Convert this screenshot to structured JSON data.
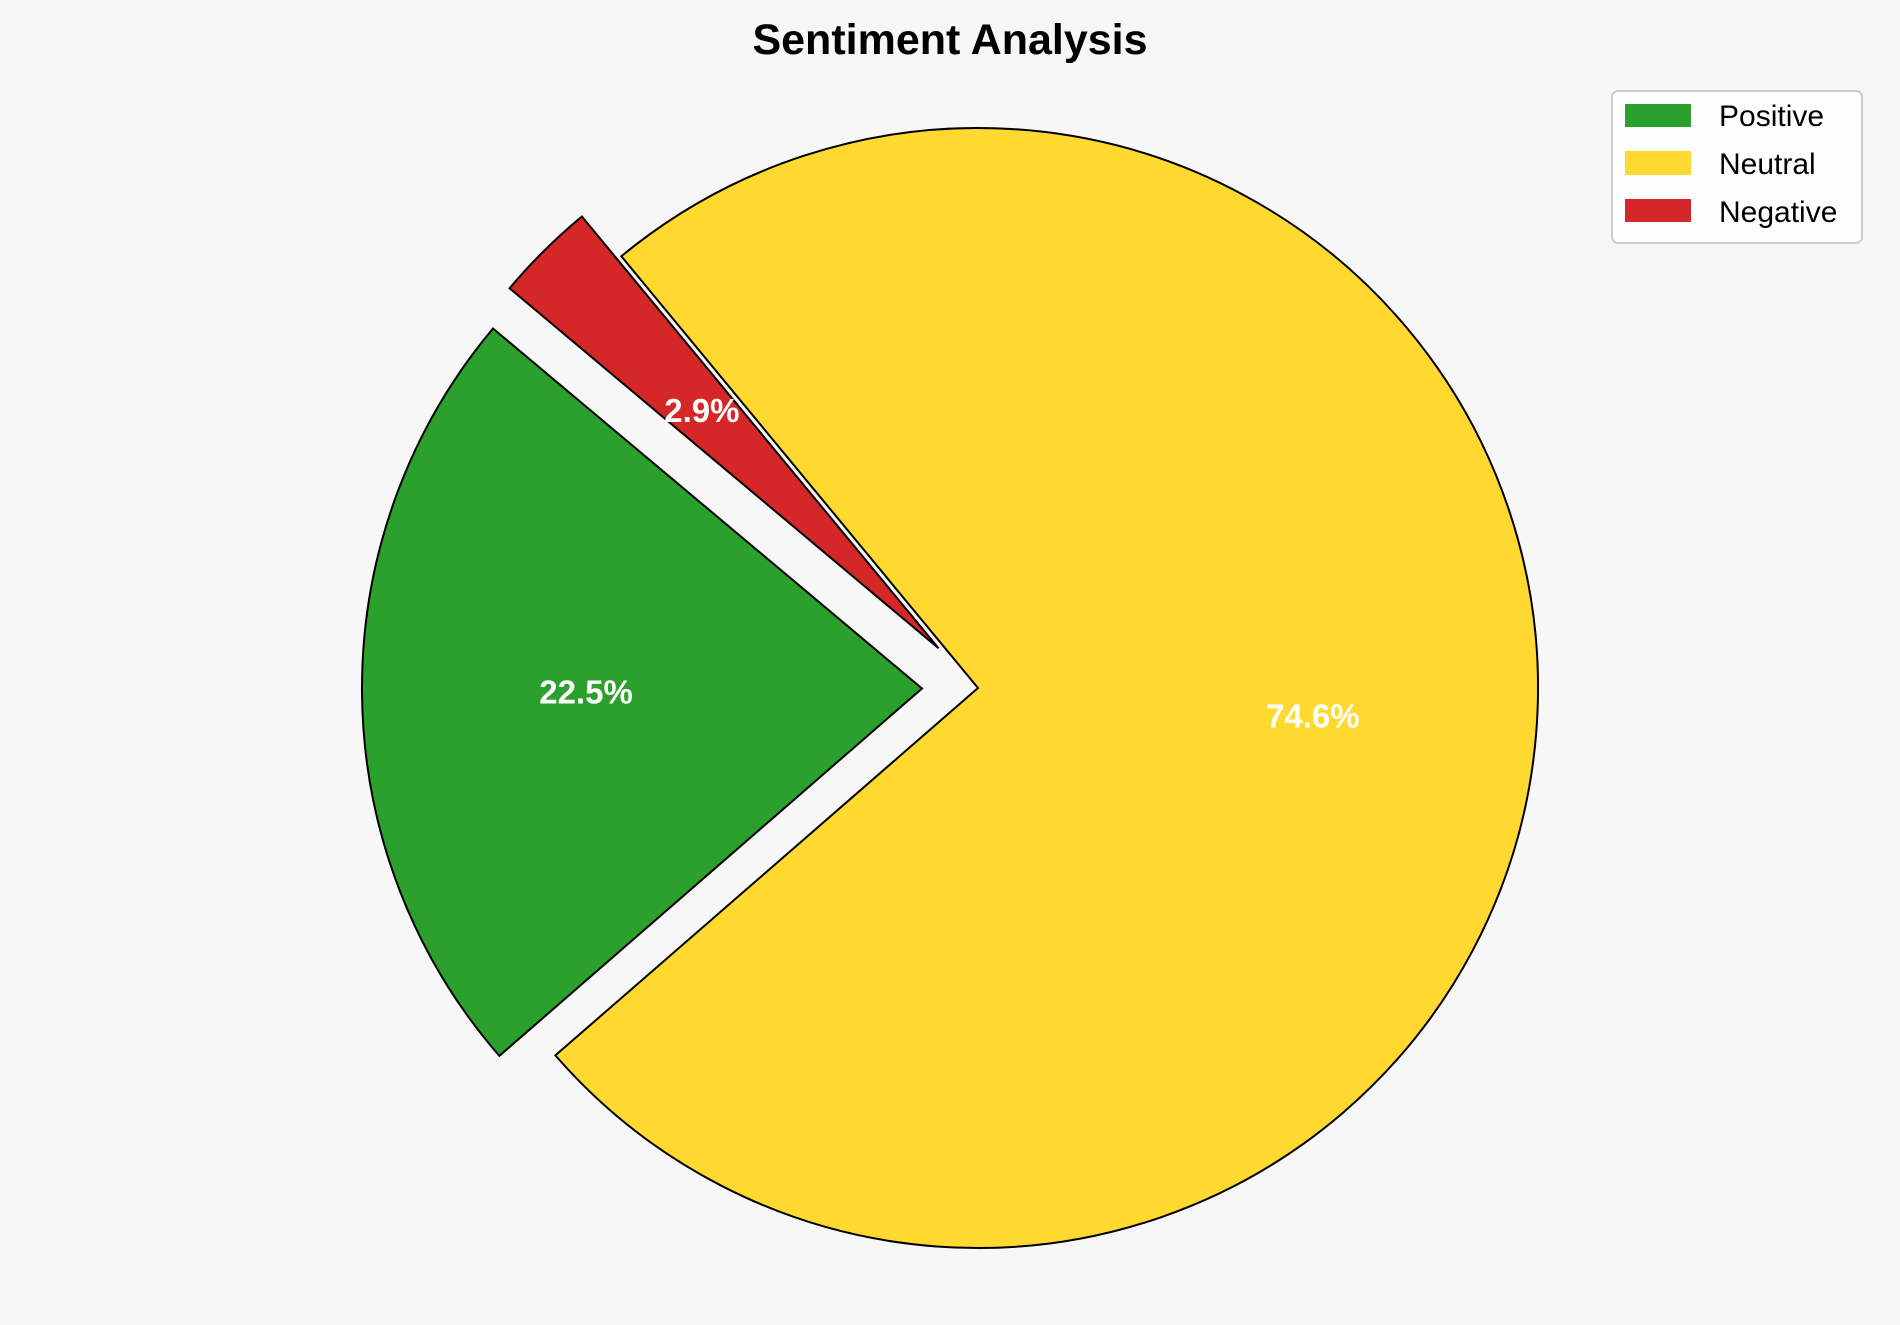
{
  "chart_data": {
    "type": "pie",
    "title": "Sentiment Analysis",
    "categories": [
      "Positive",
      "Neutral",
      "Negative"
    ],
    "values": [
      22.5,
      74.6,
      2.9
    ],
    "labels": [
      "22.5%",
      "74.6%",
      "2.9%"
    ],
    "colors": [
      "#2ca02c",
      "#ffd92f",
      "#d62728"
    ],
    "explode": [
      0.1,
      0,
      0.1
    ],
    "start_angle": 140,
    "direction": "counterclockwise",
    "edge_color": "#000000",
    "legend": {
      "placement": "top-right",
      "entries": [
        "Positive",
        "Neutral",
        "Negative"
      ]
    }
  }
}
